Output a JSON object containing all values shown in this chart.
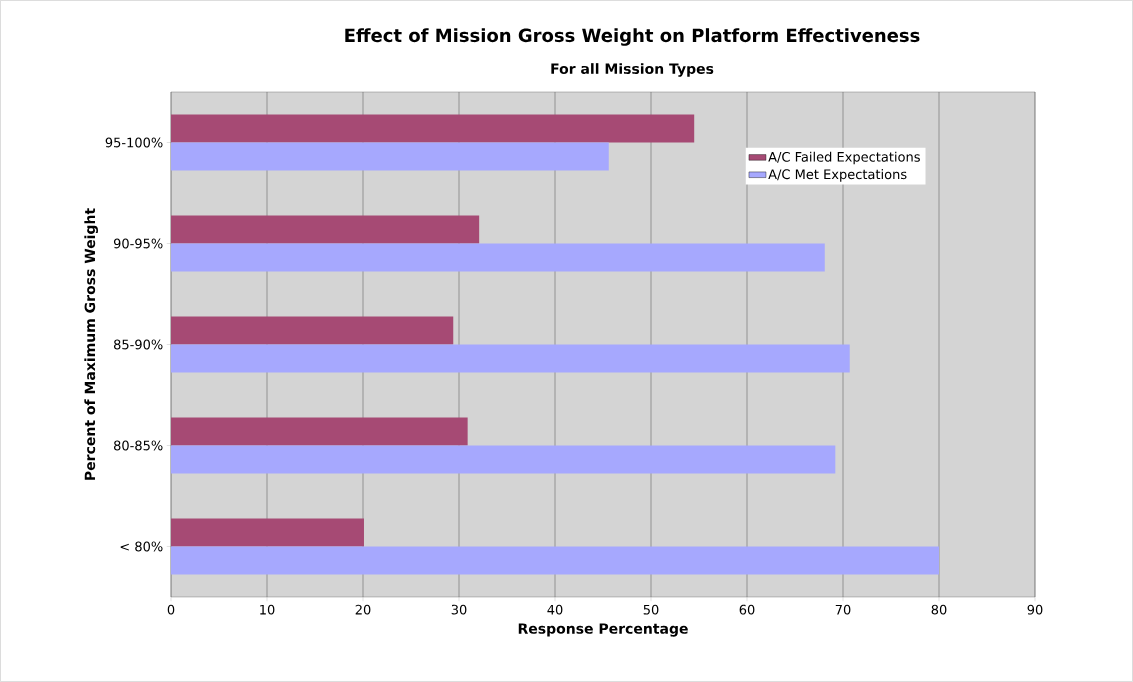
{
  "chart_data": {
    "type": "bar",
    "orientation": "horizontal",
    "title": "Effect of Mission Gross Weight on Platform Effectiveness",
    "subtitle": "For all Mission Types",
    "xlabel": "Response Percentage",
    "ylabel": "Percent of Maximum Gross Weight",
    "categories": [
      "95-100%",
      "90-95%",
      "85-90%",
      "80-85%",
      "< 80%"
    ],
    "series": [
      {
        "name": "A/C Failed Expectations",
        "color": "#a64a74",
        "values": [
          54.5,
          32.1,
          29.4,
          30.9,
          20.1
        ]
      },
      {
        "name": "A/C Met Expectations",
        "color": "#a6a8fe",
        "values": [
          45.6,
          68.1,
          70.7,
          69.2,
          80.0
        ]
      }
    ],
    "xlim": [
      0,
      90
    ],
    "xticks": [
      0,
      10,
      20,
      30,
      40,
      50,
      60,
      70,
      80,
      90
    ],
    "grid": "x",
    "legend": "top right"
  }
}
